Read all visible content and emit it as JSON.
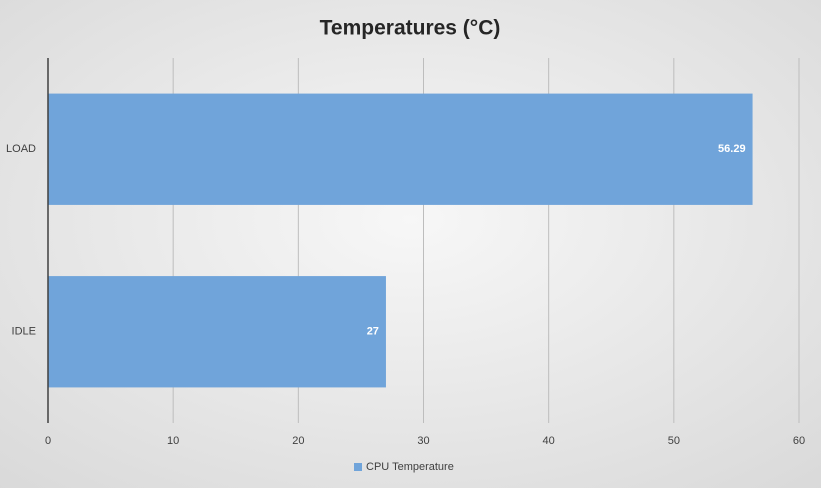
{
  "chart_data": {
    "type": "hbar",
    "title": "Temperatures (°C)",
    "categories": [
      "LOAD",
      "IDLE"
    ],
    "series": [
      {
        "name": "CPU Temperature",
        "color": "#70a4da",
        "values": [
          56.29,
          27
        ]
      }
    ],
    "xlim": [
      0,
      60
    ],
    "xticks": [
      0,
      10,
      20,
      30,
      40,
      50,
      60
    ],
    "grid": true,
    "legend": "bottom"
  }
}
